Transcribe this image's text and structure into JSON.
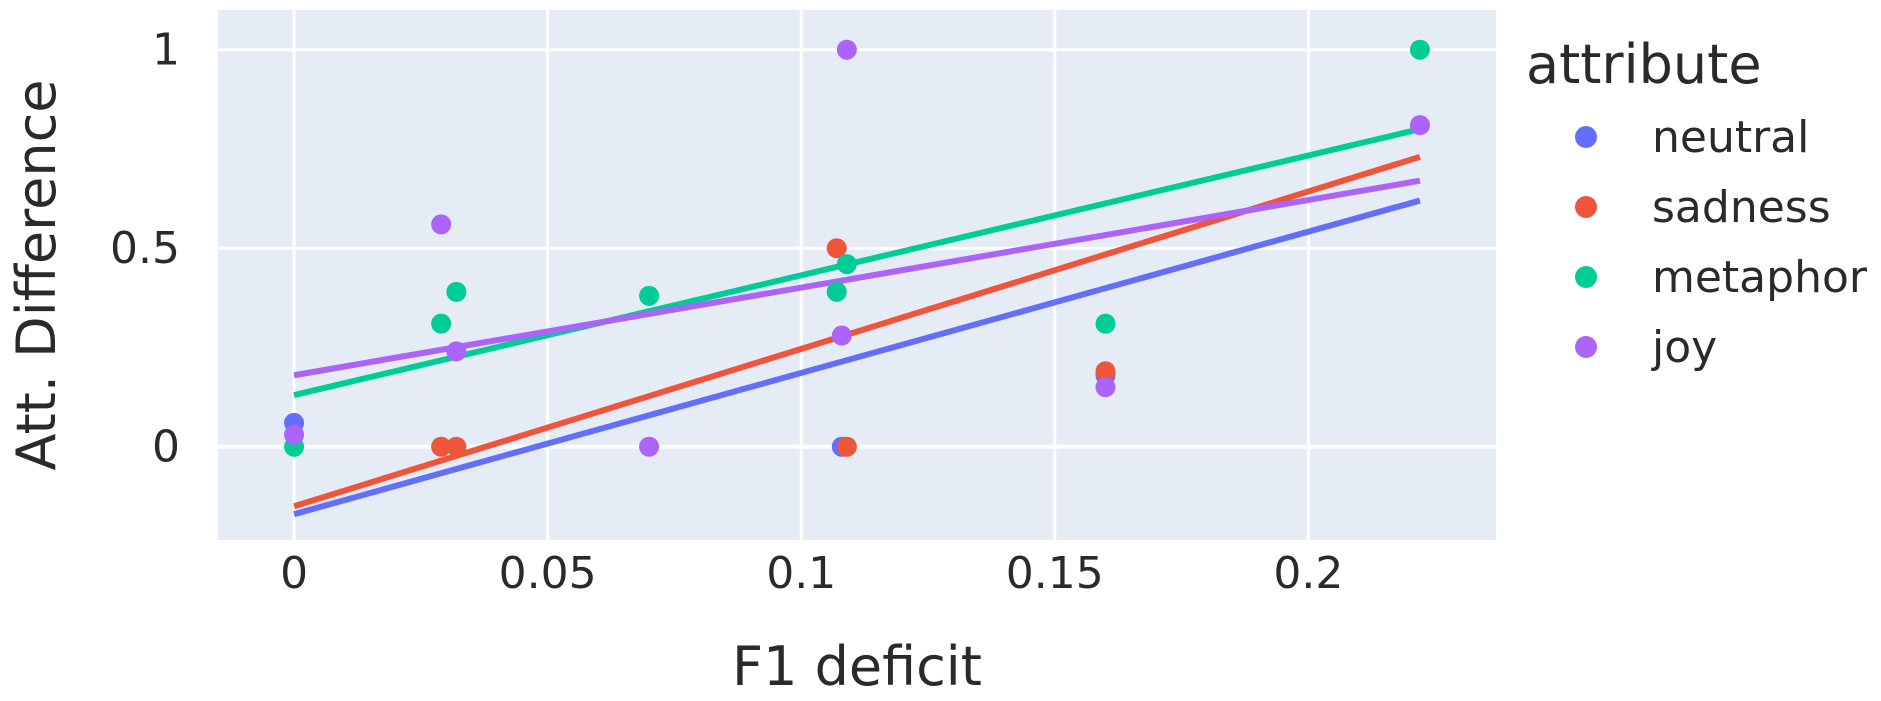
{
  "chart_data": {
    "type": "scatter",
    "xlabel": "F1 deficit",
    "ylabel": "Att. Difference",
    "xlim": [
      -0.015,
      0.237
    ],
    "ylim": [
      -0.235,
      1.1
    ],
    "xticks": [
      0,
      0.05,
      0.1,
      0.15,
      0.2
    ],
    "xtick_labels": [
      "0",
      "0.05",
      "0.1",
      "0.15",
      "0.2"
    ],
    "yticks": [
      0,
      0.5,
      1
    ],
    "ytick_labels": [
      "0",
      "0.5",
      "1"
    ],
    "grid": true,
    "legend": {
      "title": "attribute",
      "placement": "right"
    },
    "series": [
      {
        "name": "neutral",
        "color": "#636efa",
        "points": [
          [
            0,
            0.06
          ],
          [
            0.108,
            0
          ],
          [
            0.16,
            0.18
          ]
        ],
        "trend": [
          [
            0,
            -0.17
          ],
          [
            0.222,
            0.62
          ]
        ]
      },
      {
        "name": "sadness",
        "color": "#ef553b",
        "points": [
          [
            0.029,
            0
          ],
          [
            0.032,
            0
          ],
          [
            0.107,
            0.5
          ],
          [
            0.109,
            0
          ],
          [
            0.16,
            0.19
          ]
        ],
        "trend": [
          [
            0,
            -0.15
          ],
          [
            0.222,
            0.73
          ]
        ]
      },
      {
        "name": "metaphor",
        "color": "#00cc96",
        "points": [
          [
            0,
            0
          ],
          [
            0.029,
            0.31
          ],
          [
            0.032,
            0.39
          ],
          [
            0.07,
            0.38
          ],
          [
            0.107,
            0.39
          ],
          [
            0.109,
            0.46
          ],
          [
            0.16,
            0.31
          ],
          [
            0.222,
            1.0
          ]
        ],
        "trend": [
          [
            0,
            0.13
          ],
          [
            0.222,
            0.8
          ]
        ]
      },
      {
        "name": "joy",
        "color": "#ab63fa",
        "points": [
          [
            0,
            0.03
          ],
          [
            0.029,
            0.56
          ],
          [
            0.032,
            0.24
          ],
          [
            0.07,
            0
          ],
          [
            0.108,
            0.28
          ],
          [
            0.109,
            1.0
          ],
          [
            0.16,
            0.15
          ],
          [
            0.222,
            0.81
          ]
        ],
        "trend": [
          [
            0,
            0.18
          ],
          [
            0.222,
            0.67
          ]
        ]
      }
    ]
  }
}
